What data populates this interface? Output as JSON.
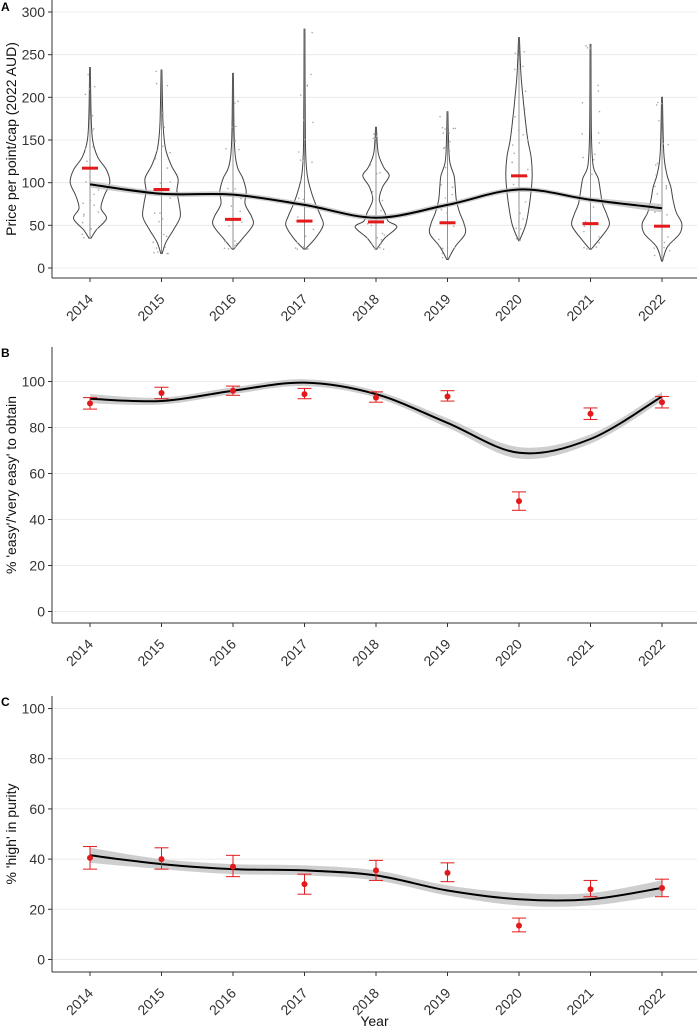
{
  "chart_data": [
    {
      "panel": "A",
      "type": "violin",
      "xlabel": "",
      "ylabel": "Price per point/cap (2022 AUD)",
      "ylim": [
        0,
        300
      ],
      "yticks": [
        0,
        50,
        100,
        150,
        200,
        250,
        300
      ],
      "categories": [
        "2014",
        "2015",
        "2016",
        "2017",
        "2018",
        "2019",
        "2020",
        "2021",
        "2022"
      ],
      "violins": [
        {
          "min": 35,
          "max": 235,
          "profile": [
            [
              35,
              0.05
            ],
            [
              45,
              0.3
            ],
            [
              58,
              0.75
            ],
            [
              70,
              0.5
            ],
            [
              85,
              0.65
            ],
            [
              100,
              0.9
            ],
            [
              115,
              0.75
            ],
            [
              130,
              0.35
            ],
            [
              150,
              0.12
            ],
            [
              180,
              0.05
            ],
            [
              235,
              0.02
            ]
          ]
        },
        {
          "min": 17,
          "max": 232,
          "profile": [
            [
              17,
              0.03
            ],
            [
              30,
              0.2
            ],
            [
              45,
              0.55
            ],
            [
              60,
              0.85
            ],
            [
              75,
              0.8
            ],
            [
              90,
              0.7
            ],
            [
              105,
              0.75
            ],
            [
              120,
              0.45
            ],
            [
              140,
              0.18
            ],
            [
              170,
              0.07
            ],
            [
              232,
              0.02
            ]
          ]
        },
        {
          "min": 22,
          "max": 228,
          "profile": [
            [
              22,
              0.03
            ],
            [
              35,
              0.45
            ],
            [
              50,
              0.9
            ],
            [
              60,
              0.85
            ],
            [
              75,
              0.55
            ],
            [
              90,
              0.6
            ],
            [
              105,
              0.45
            ],
            [
              120,
              0.18
            ],
            [
              150,
              0.06
            ],
            [
              228,
              0.02
            ]
          ]
        },
        {
          "min": 22,
          "max": 280,
          "profile": [
            [
              22,
              0.03
            ],
            [
              35,
              0.5
            ],
            [
              50,
              0.85
            ],
            [
              60,
              0.75
            ],
            [
              75,
              0.5
            ],
            [
              90,
              0.3
            ],
            [
              110,
              0.12
            ],
            [
              150,
              0.04
            ],
            [
              280,
              0.02
            ]
          ]
        },
        {
          "min": 22,
          "max": 165,
          "profile": [
            [
              22,
              0.03
            ],
            [
              35,
              0.4
            ],
            [
              48,
              0.95
            ],
            [
              55,
              0.55
            ],
            [
              65,
              0.4
            ],
            [
              80,
              0.15
            ],
            [
              95,
              0.3
            ],
            [
              108,
              0.6
            ],
            [
              118,
              0.35
            ],
            [
              135,
              0.1
            ],
            [
              165,
              0.02
            ]
          ]
        },
        {
          "min": 10,
          "max": 183,
          "profile": [
            [
              10,
              0.03
            ],
            [
              25,
              0.35
            ],
            [
              40,
              0.8
            ],
            [
              52,
              0.75
            ],
            [
              65,
              0.55
            ],
            [
              80,
              0.4
            ],
            [
              95,
              0.35
            ],
            [
              108,
              0.3
            ],
            [
              125,
              0.1
            ],
            [
              155,
              0.04
            ],
            [
              183,
              0.02
            ]
          ]
        },
        {
          "min": 32,
          "max": 270,
          "profile": [
            [
              32,
              0.02
            ],
            [
              50,
              0.3
            ],
            [
              70,
              0.45
            ],
            [
              90,
              0.55
            ],
            [
              110,
              0.6
            ],
            [
              130,
              0.55
            ],
            [
              150,
              0.4
            ],
            [
              175,
              0.28
            ],
            [
              200,
              0.18
            ],
            [
              230,
              0.08
            ],
            [
              270,
              0.02
            ]
          ]
        },
        {
          "min": 22,
          "max": 262,
          "profile": [
            [
              22,
              0.03
            ],
            [
              35,
              0.45
            ],
            [
              50,
              0.85
            ],
            [
              62,
              0.75
            ],
            [
              75,
              0.55
            ],
            [
              90,
              0.45
            ],
            [
              105,
              0.35
            ],
            [
              120,
              0.12
            ],
            [
              160,
              0.04
            ],
            [
              262,
              0.02
            ]
          ]
        },
        {
          "min": 8,
          "max": 200,
          "profile": [
            [
              8,
              0.02
            ],
            [
              25,
              0.25
            ],
            [
              40,
              0.8
            ],
            [
              52,
              0.9
            ],
            [
              65,
              0.65
            ],
            [
              80,
              0.5
            ],
            [
              95,
              0.4
            ],
            [
              110,
              0.22
            ],
            [
              135,
              0.08
            ],
            [
              200,
              0.02
            ]
          ]
        }
      ],
      "medians": [
        117,
        92,
        57,
        55,
        54,
        53,
        108,
        52,
        49
      ],
      "smooth": [
        98,
        87,
        86,
        74,
        59,
        74,
        92,
        80,
        70
      ],
      "smooth_se": [
        4,
        3,
        3,
        3,
        3,
        3,
        3,
        3,
        5
      ],
      "grid": "horizontal"
    },
    {
      "panel": "B",
      "type": "scatter",
      "xlabel": "",
      "ylabel": "% 'easy'/'very easy' to obtain",
      "ylim": [
        -5,
        115
      ],
      "yticks": [
        0,
        20,
        40,
        60,
        80,
        100
      ],
      "categories": [
        "2014",
        "2015",
        "2016",
        "2017",
        "2018",
        "2019",
        "2020",
        "2021",
        "2022"
      ],
      "values": [
        90.5,
        95,
        96,
        94.5,
        93,
        93.5,
        48,
        86,
        91
      ],
      "lower": [
        88,
        92.5,
        94,
        92.5,
        91,
        91.5,
        44,
        83.5,
        88.5
      ],
      "upper": [
        93,
        97.5,
        98,
        97,
        95.5,
        96,
        52,
        88.5,
        93.5
      ],
      "smooth": [
        92.5,
        91.5,
        96,
        99.5,
        94.5,
        82,
        69,
        75,
        93.5
      ],
      "smooth_se": [
        2,
        1.5,
        1.5,
        1.5,
        1.5,
        2,
        2.5,
        2,
        2
      ],
      "grid": "horizontal"
    },
    {
      "panel": "C",
      "type": "scatter",
      "xlabel": "Year",
      "ylabel": "% 'high' in purity",
      "ylim": [
        -5,
        105
      ],
      "yticks": [
        0,
        20,
        40,
        60,
        80,
        100
      ],
      "categories": [
        "2014",
        "2015",
        "2016",
        "2017",
        "2018",
        "2019",
        "2020",
        "2021",
        "2022"
      ],
      "values": [
        40.5,
        40,
        37,
        30,
        35.5,
        34.5,
        13.5,
        28,
        28.5
      ],
      "lower": [
        36,
        36,
        33,
        26,
        31.5,
        31,
        11,
        25,
        25
      ],
      "upper": [
        45,
        44.5,
        41.5,
        34,
        39.5,
        38.5,
        16.5,
        31.5,
        32
      ],
      "smooth": [
        41.5,
        38,
        36,
        35.5,
        33.5,
        27.5,
        24,
        24,
        28.5
      ],
      "smooth_se": [
        3,
        2,
        2,
        2,
        2,
        2,
        2.5,
        2.5,
        3
      ],
      "grid": "horizontal"
    }
  ]
}
